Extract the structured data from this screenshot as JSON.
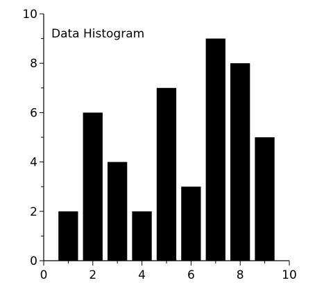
{
  "chart_data": {
    "type": "bar",
    "title": "Data Histogram",
    "title_placement": "inside-top-left",
    "xlabel": "",
    "ylabel": "",
    "x": [
      1,
      2,
      3,
      4,
      5,
      6,
      7,
      8,
      9
    ],
    "values": [
      2,
      6,
      4,
      2,
      7,
      3,
      9,
      8,
      5
    ],
    "bar_width": 0.8,
    "xlim": [
      0,
      10
    ],
    "ylim": [
      0,
      10
    ],
    "x_major_ticks": [
      0,
      2,
      4,
      6,
      8,
      10
    ],
    "y_major_ticks": [
      0,
      2,
      4,
      6,
      8,
      10
    ],
    "x_tick_labels": [
      "0",
      "2",
      "4",
      "6",
      "8",
      "10"
    ],
    "y_tick_labels": [
      "0",
      "2",
      "4",
      "6",
      "8",
      "10"
    ],
    "grid": false,
    "bar_color": "#000000",
    "background": "#ffffff"
  }
}
